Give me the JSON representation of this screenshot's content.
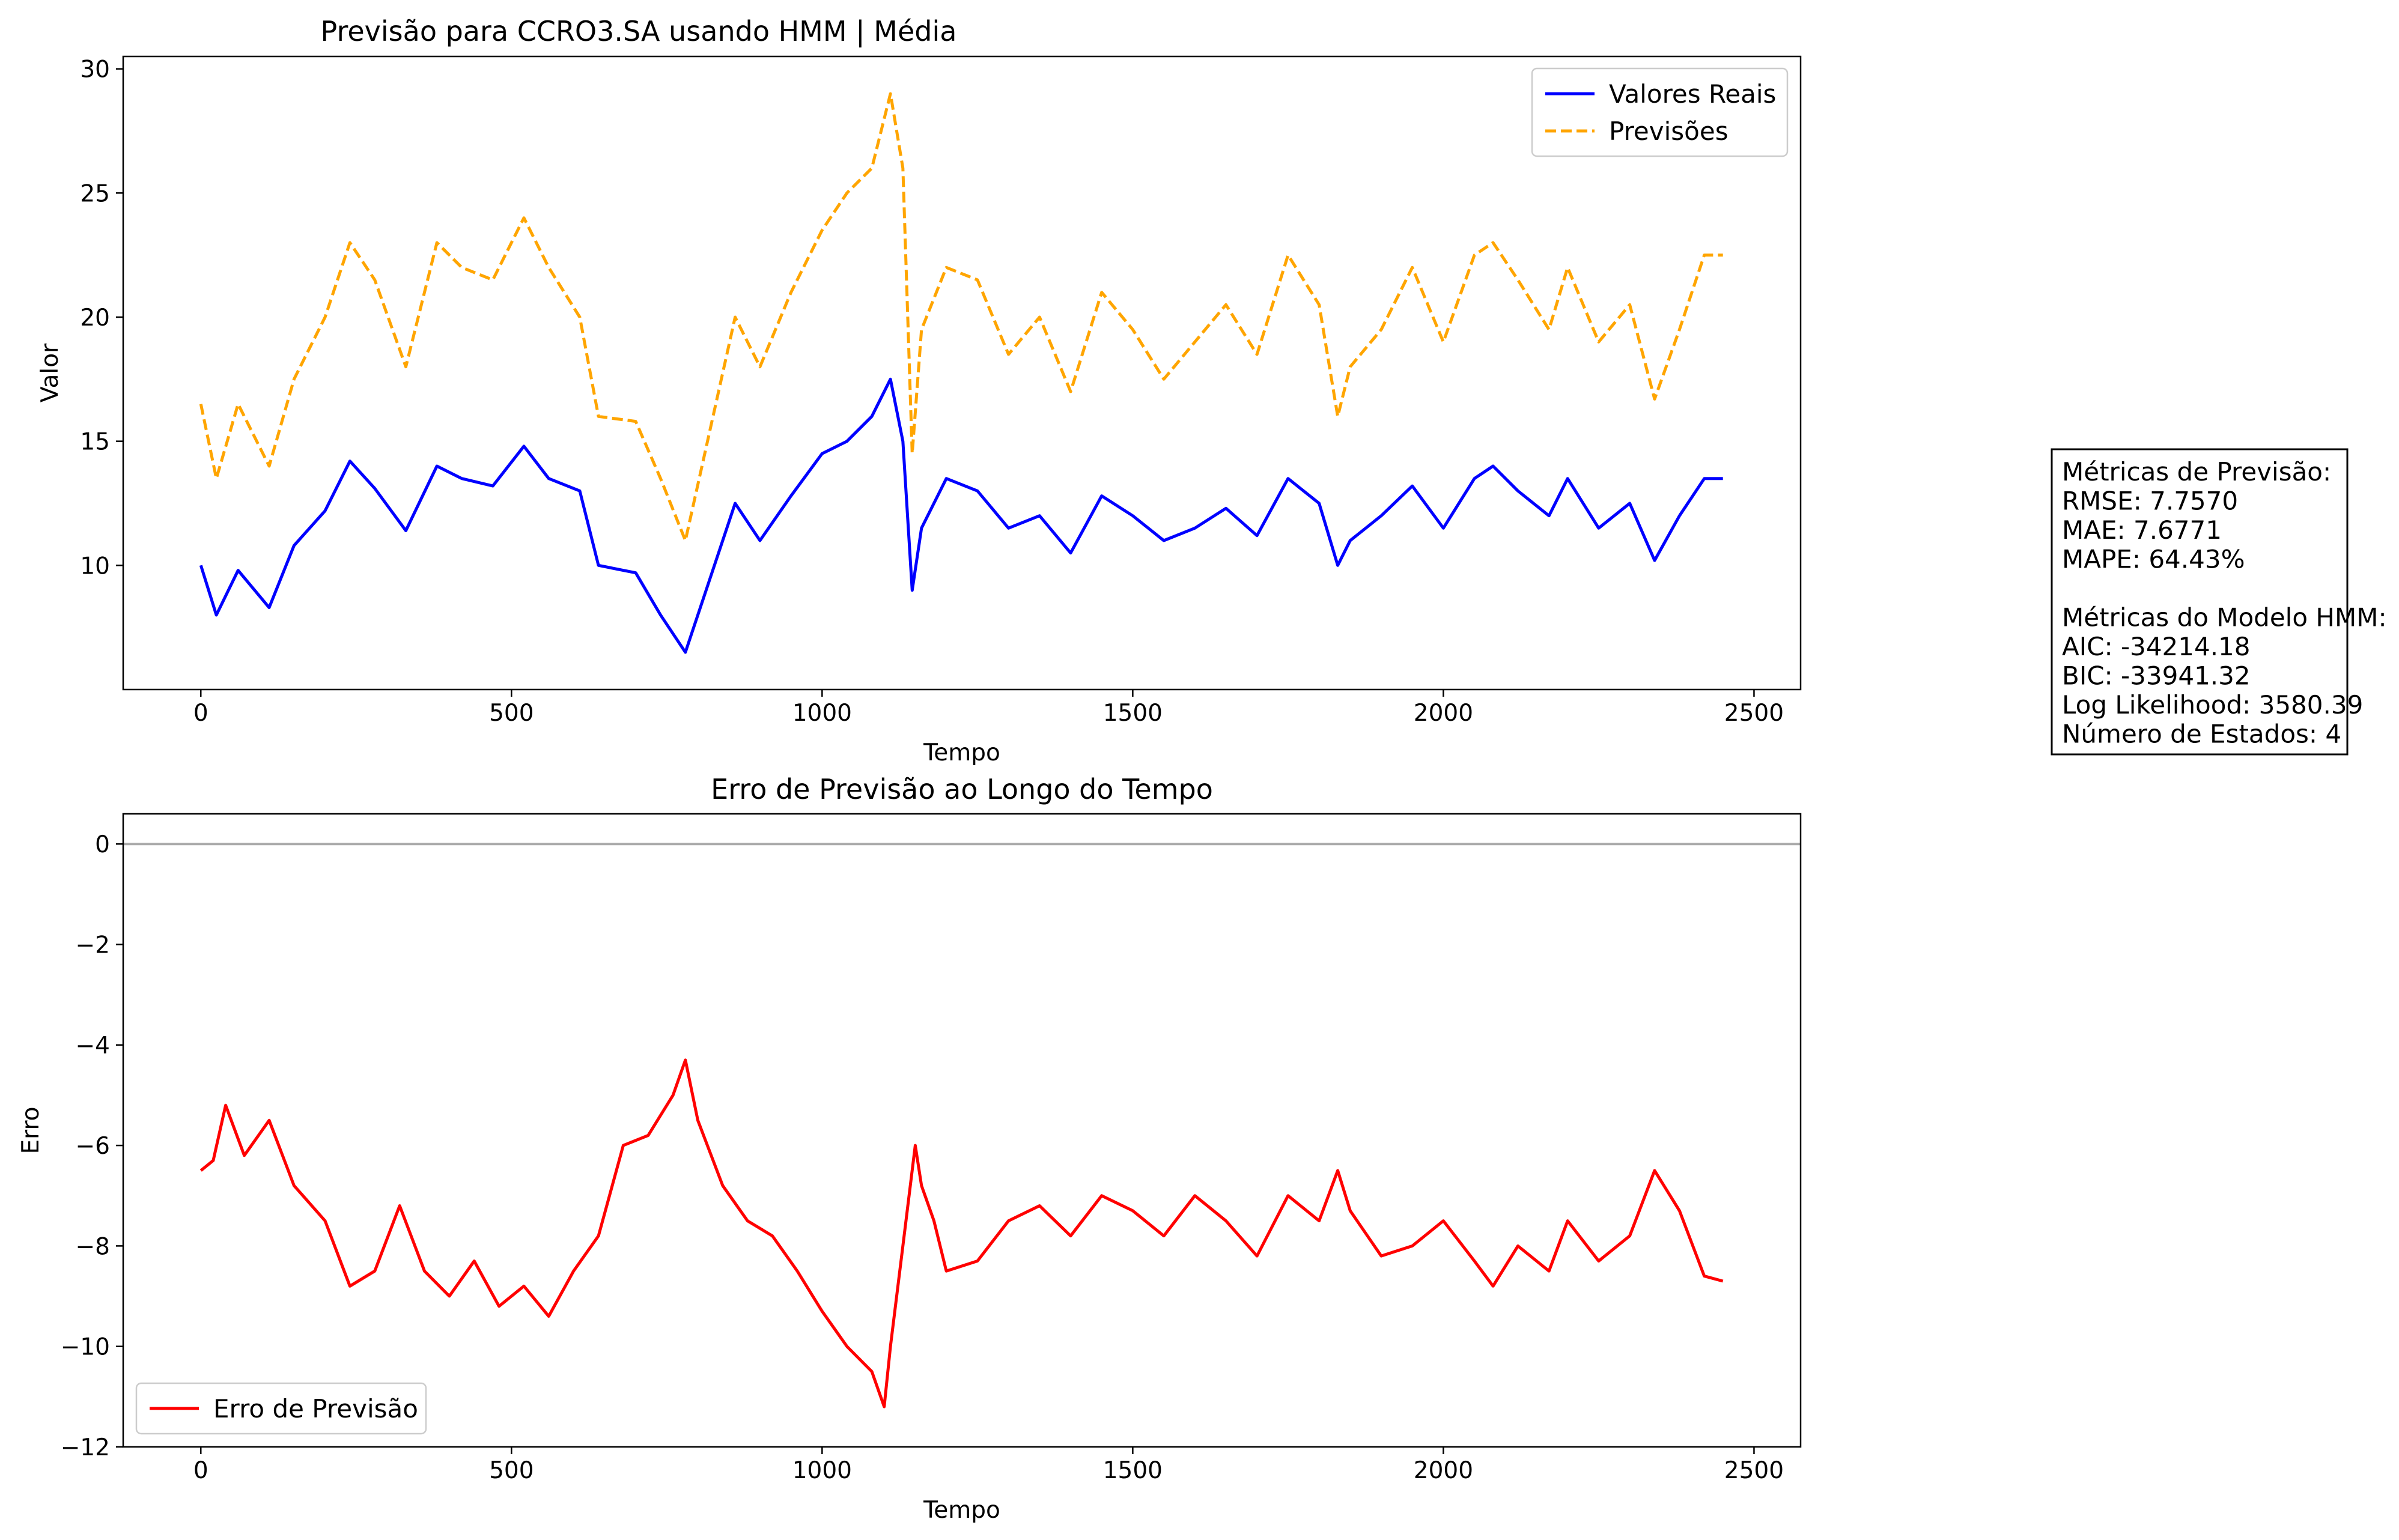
{
  "chart_data": [
    {
      "type": "line",
      "title": "Previsão para CCRO3.SA usando HMM | Média",
      "xlabel": "Tempo",
      "ylabel": "Valor",
      "xlim": [
        -125,
        2575
      ],
      "ylim": [
        5.0,
        30.5
      ],
      "xticks": [
        "0",
        "500",
        "1000",
        "1500",
        "2000",
        "2500"
      ],
      "yticks": [
        "10",
        "15",
        "20",
        "25",
        "30"
      ],
      "legend_position": "top-right",
      "series": [
        {
          "name": "Valores Reais",
          "color": "#0000ff",
          "style": "solid",
          "x": [
            0,
            25,
            60,
            110,
            150,
            200,
            240,
            280,
            330,
            380,
            420,
            470,
            520,
            560,
            610,
            640,
            700,
            740,
            780,
            820,
            860,
            900,
            950,
            1000,
            1040,
            1080,
            1110,
            1130,
            1145,
            1160,
            1200,
            1250,
            1300,
            1350,
            1400,
            1450,
            1500,
            1550,
            1600,
            1650,
            1700,
            1750,
            1800,
            1830,
            1850,
            1900,
            1950,
            2000,
            2050,
            2080,
            2120,
            2170,
            2200,
            2250,
            2300,
            2340,
            2380,
            2420,
            2450
          ],
          "y": [
            10.0,
            8.0,
            9.8,
            8.3,
            10.8,
            12.2,
            14.2,
            13.1,
            11.4,
            14.0,
            13.5,
            13.2,
            14.8,
            13.5,
            13.0,
            10.0,
            9.7,
            8.0,
            6.5,
            9.5,
            12.5,
            11.0,
            12.8,
            14.5,
            15.0,
            16.0,
            17.5,
            15.0,
            9.0,
            11.5,
            13.5,
            13.0,
            11.5,
            12.0,
            10.5,
            12.8,
            12.0,
            11.0,
            11.5,
            12.3,
            11.2,
            13.5,
            12.5,
            10.0,
            11.0,
            12.0,
            13.2,
            11.5,
            13.5,
            14.0,
            13.0,
            12.0,
            13.5,
            11.5,
            12.5,
            10.2,
            12.0,
            13.5,
            13.5
          ]
        },
        {
          "name": "Previsões",
          "color": "#ffa500",
          "style": "dashed",
          "x": [
            0,
            25,
            60,
            110,
            150,
            200,
            240,
            280,
            330,
            380,
            420,
            470,
            520,
            560,
            610,
            640,
            700,
            740,
            780,
            820,
            860,
            900,
            950,
            1000,
            1040,
            1080,
            1110,
            1130,
            1145,
            1160,
            1200,
            1250,
            1300,
            1350,
            1400,
            1450,
            1500,
            1550,
            1600,
            1650,
            1700,
            1750,
            1800,
            1830,
            1850,
            1900,
            1950,
            2000,
            2050,
            2080,
            2120,
            2170,
            2200,
            2250,
            2300,
            2340,
            2380,
            2420,
            2450
          ],
          "y": [
            16.5,
            13.5,
            16.5,
            14.0,
            17.5,
            20.0,
            23.0,
            21.5,
            18.0,
            23.0,
            22.0,
            21.5,
            24.0,
            22.0,
            20.0,
            16.0,
            15.8,
            13.5,
            11.0,
            15.5,
            20.0,
            18.0,
            21.0,
            23.5,
            25.0,
            26.0,
            29.0,
            26.0,
            14.5,
            19.5,
            22.0,
            21.5,
            18.5,
            20.0,
            17.0,
            21.0,
            19.5,
            17.5,
            19.0,
            20.5,
            18.5,
            22.5,
            20.5,
            16.0,
            18.0,
            19.5,
            22.0,
            19.0,
            22.5,
            23.0,
            21.5,
            19.5,
            22.0,
            19.0,
            20.5,
            16.7,
            19.5,
            22.5,
            22.5
          ]
        }
      ]
    },
    {
      "type": "line",
      "title": "Erro de Previsão ao Longo do Tempo",
      "xlabel": "Tempo",
      "ylabel": "Erro",
      "xlim": [
        -125,
        2575
      ],
      "ylim": [
        -12.0,
        0.6
      ],
      "xticks": [
        "0",
        "500",
        "1000",
        "1500",
        "2000",
        "2500"
      ],
      "yticks": [
        "0",
        "−2",
        "−4",
        "−6",
        "−8",
        "−10",
        "−12"
      ],
      "legend_position": "bottom-left",
      "reference_line": {
        "y": 0,
        "color": "#aaaaaa"
      },
      "series": [
        {
          "name": "Erro de Previsão",
          "color": "#ff0000",
          "style": "solid",
          "x": [
            0,
            20,
            40,
            70,
            110,
            150,
            200,
            240,
            280,
            320,
            360,
            400,
            440,
            480,
            520,
            560,
            600,
            640,
            680,
            720,
            760,
            780,
            800,
            840,
            880,
            920,
            960,
            1000,
            1040,
            1080,
            1100,
            1110,
            1130,
            1150,
            1160,
            1180,
            1200,
            1250,
            1300,
            1350,
            1400,
            1450,
            1500,
            1550,
            1600,
            1650,
            1700,
            1750,
            1800,
            1830,
            1850,
            1900,
            1950,
            2000,
            2050,
            2080,
            2120,
            2170,
            2200,
            2250,
            2300,
            2340,
            2380,
            2420,
            2450
          ],
          "y": [
            -6.5,
            -6.3,
            -5.2,
            -6.2,
            -5.5,
            -6.8,
            -7.5,
            -8.8,
            -8.5,
            -7.2,
            -8.5,
            -9.0,
            -8.3,
            -9.2,
            -8.8,
            -9.4,
            -8.5,
            -7.8,
            -6.0,
            -5.8,
            -5.0,
            -4.3,
            -5.5,
            -6.8,
            -7.5,
            -7.8,
            -8.5,
            -9.3,
            -10.0,
            -10.5,
            -11.2,
            -10.0,
            -8.0,
            -6.0,
            -6.8,
            -7.5,
            -8.5,
            -8.3,
            -7.5,
            -7.2,
            -7.8,
            -7.0,
            -7.3,
            -7.8,
            -7.0,
            -7.5,
            -8.2,
            -7.0,
            -7.5,
            -6.5,
            -7.3,
            -8.2,
            -8.0,
            -7.5,
            -8.3,
            -8.8,
            -8.0,
            -8.5,
            -7.5,
            -8.3,
            -7.8,
            -6.5,
            -7.3,
            -8.6,
            -8.7
          ]
        }
      ]
    }
  ],
  "metrics_box": {
    "lines": [
      "Métricas de Previsão:",
      "RMSE: 7.7570",
      "MAE: 7.6771",
      "MAPE: 64.43%",
      "",
      "Métricas do Modelo HMM:",
      "AIC: -34214.18",
      "BIC: -33941.32",
      "Log Likelihood: 3580.39",
      "Número de Estados: 4"
    ]
  }
}
